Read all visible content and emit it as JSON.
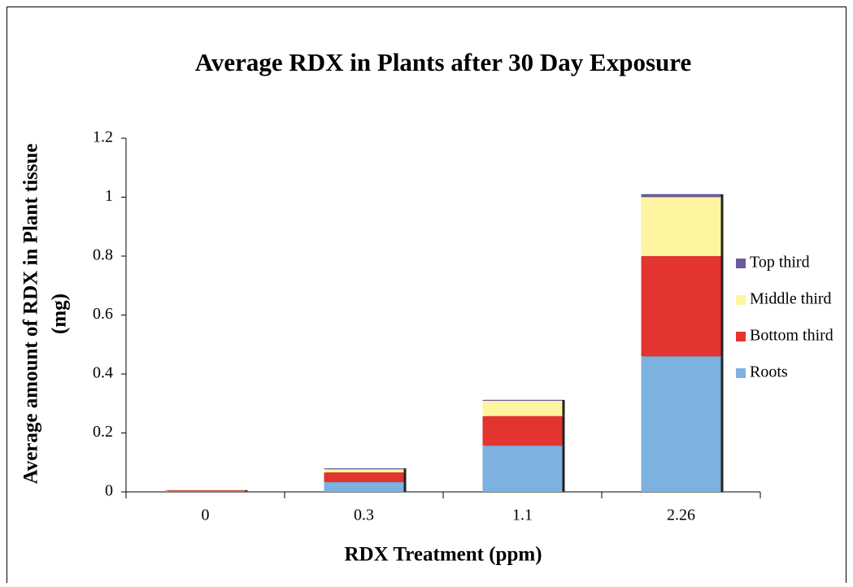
{
  "chart_data": {
    "type": "stacked_bar",
    "title": "Average RDX in Plants after 30 Day Exposure",
    "x_label": "RDX Treatment (ppm)",
    "y_label": [
      "Average amount of RDX in Plant tissue",
      "(mg)"
    ],
    "categories": [
      "0",
      "0.3",
      "1.1",
      "2.26"
    ],
    "series": [
      {
        "name": "Roots",
        "color": "#7cb1e0",
        "values": [
          0.002,
          0.033,
          0.157,
          0.46
        ]
      },
      {
        "name": "Bottom third",
        "color": "#e3342f",
        "values": [
          0.003,
          0.033,
          0.1,
          0.34
        ]
      },
      {
        "name": "Middle third",
        "color": "#fdf59f",
        "values": [
          0.001,
          0.011,
          0.052,
          0.2
        ]
      },
      {
        "name": "Top third",
        "color": "#6b5a9a",
        "values": [
          0,
          0.003,
          0.003,
          0.01
        ]
      }
    ],
    "ylim": [
      0,
      1.2
    ],
    "yticks": [
      0,
      0.2,
      0.4,
      0.6,
      0.8,
      1,
      1.2
    ],
    "grid": false,
    "legend": "right"
  }
}
